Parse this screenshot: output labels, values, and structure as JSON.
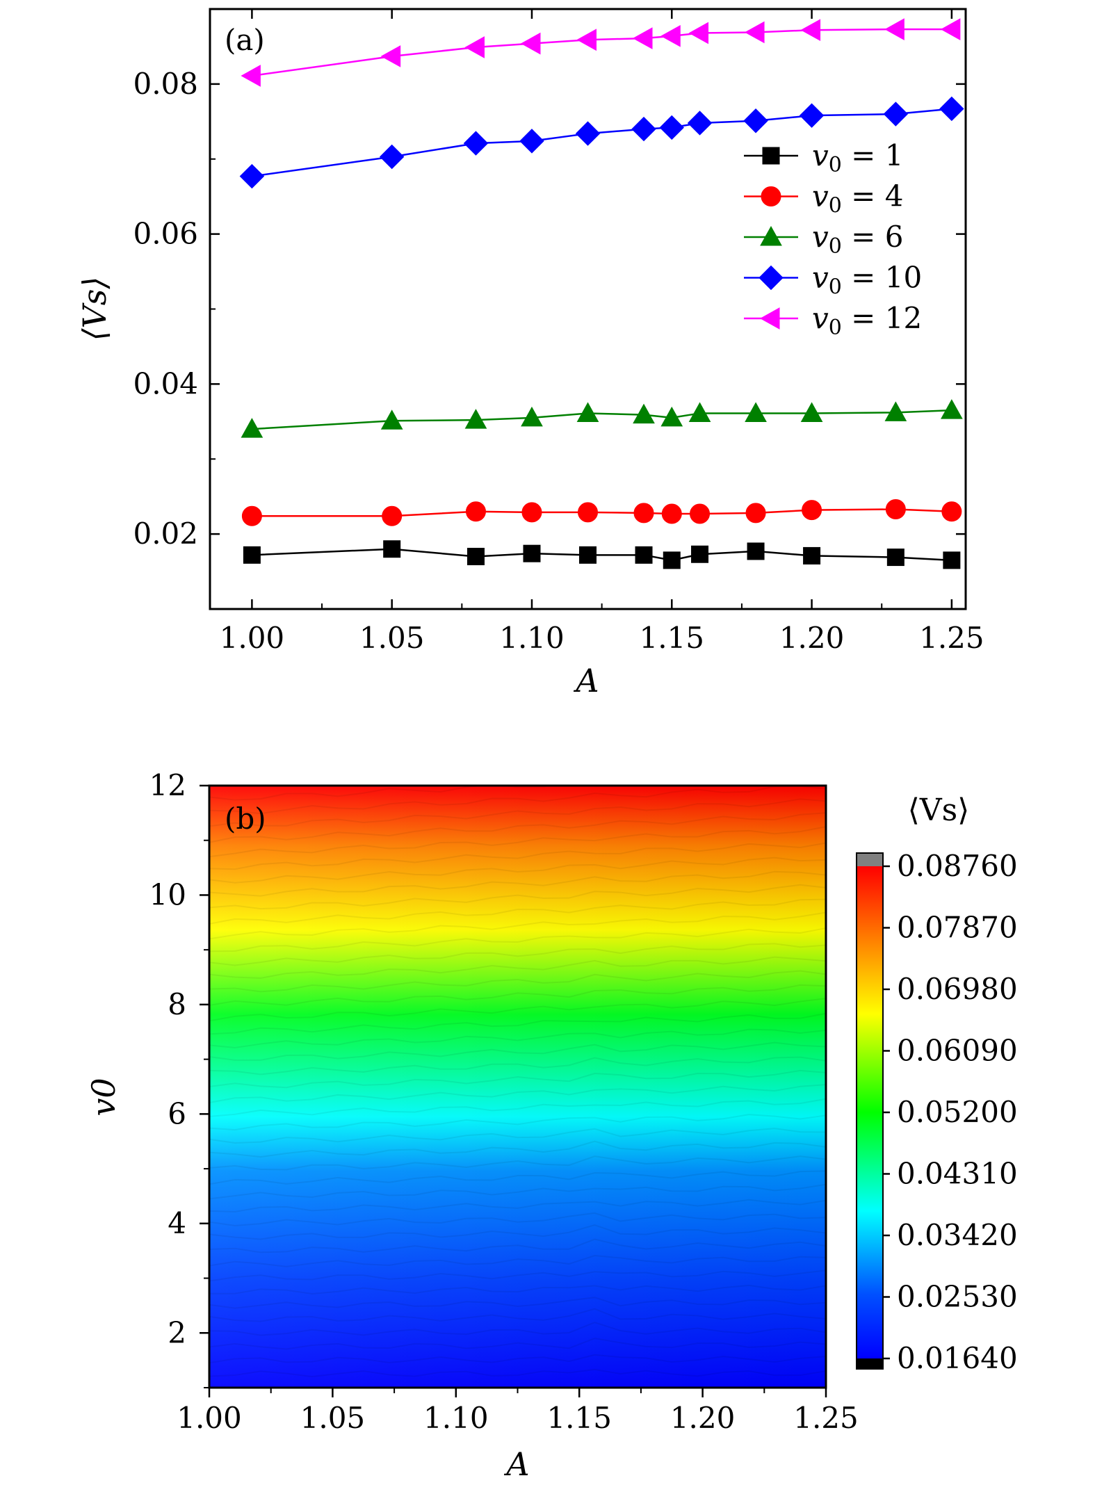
{
  "chart_data": [
    {
      "panel_label": "(a)",
      "type": "line",
      "xlabel": "A",
      "ylabel": "⟨Vs⟩",
      "xlim": [
        0.985,
        1.255
      ],
      "ylim": [
        0.01,
        0.09
      ],
      "x_ticks": [
        "1.00",
        "1.05",
        "1.10",
        "1.15",
        "1.20",
        "1.25"
      ],
      "x_tick_values": [
        1.0,
        1.05,
        1.1,
        1.15,
        1.2,
        1.25
      ],
      "y_ticks": [
        "0.02",
        "0.04",
        "0.06",
        "0.08"
      ],
      "y_tick_values": [
        0.02,
        0.04,
        0.06,
        0.08
      ],
      "x": [
        1.0,
        1.05,
        1.08,
        1.1,
        1.12,
        1.14,
        1.15,
        1.16,
        1.18,
        1.2,
        1.23,
        1.25
      ],
      "legend_position": "right",
      "series": [
        {
          "name": "v0 = 1",
          "label_lhs": "v",
          "label_sub": "0",
          "label_rhs": " = 1",
          "color": "#000000",
          "marker": "square",
          "values": [
            0.0172,
            0.018,
            0.017,
            0.0174,
            0.0172,
            0.0172,
            0.0165,
            0.0173,
            0.0177,
            0.0171,
            0.0169,
            0.0165
          ]
        },
        {
          "name": "v0 = 4",
          "label_lhs": "v",
          "label_sub": "0",
          "label_rhs": " = 4",
          "color": "#ff0000",
          "marker": "circle",
          "values": [
            0.0224,
            0.0224,
            0.023,
            0.0229,
            0.0229,
            0.0228,
            0.0227,
            0.0227,
            0.0228,
            0.0232,
            0.0233,
            0.023
          ]
        },
        {
          "name": "v0 = 6",
          "label_lhs": "v",
          "label_sub": "0",
          "label_rhs": " = 6",
          "color": "#008000",
          "marker": "triangle-up",
          "values": [
            0.034,
            0.0351,
            0.0352,
            0.0355,
            0.0361,
            0.0359,
            0.0355,
            0.0361,
            0.0361,
            0.0361,
            0.0362,
            0.0365
          ]
        },
        {
          "name": "v0 = 10",
          "label_lhs": "v",
          "label_sub": "0",
          "label_rhs": " = 10",
          "color": "#0000ff",
          "marker": "diamond",
          "values": [
            0.0677,
            0.0703,
            0.0721,
            0.0724,
            0.0734,
            0.074,
            0.0742,
            0.0748,
            0.0751,
            0.0758,
            0.076,
            0.0767
          ]
        },
        {
          "name": "v0 = 12",
          "label_lhs": "v",
          "label_sub": "0",
          "label_rhs": " = 12",
          "color": "#ff00ff",
          "marker": "triangle-left",
          "values": [
            0.0811,
            0.0837,
            0.0849,
            0.0854,
            0.0859,
            0.0861,
            0.0864,
            0.0868,
            0.0869,
            0.0872,
            0.0873,
            0.0873
          ]
        }
      ]
    },
    {
      "panel_label": "(b)",
      "type": "heatmap",
      "xlabel": "A",
      "ylabel": "v0",
      "xlim": [
        1.0,
        1.25
      ],
      "ylim": [
        1,
        12
      ],
      "x_ticks": [
        "1.00",
        "1.05",
        "1.10",
        "1.15",
        "1.20",
        "1.25"
      ],
      "x_tick_values": [
        1.0,
        1.05,
        1.1,
        1.15,
        1.2,
        1.25
      ],
      "y_ticks": [
        "2",
        "4",
        "6",
        "8",
        "10",
        "12"
      ],
      "y_tick_values": [
        2,
        4,
        6,
        8,
        10,
        12
      ],
      "colorbar": {
        "title": "⟨Vs⟩",
        "ticks": [
          "0.08760",
          "0.07870",
          "0.06980",
          "0.06090",
          "0.05200",
          "0.04310",
          "0.03420",
          "0.02530",
          "0.01640"
        ],
        "tick_values": [
          0.0876,
          0.0787,
          0.0698,
          0.0609,
          0.052,
          0.0431,
          0.0342,
          0.0253,
          0.0164
        ],
        "range": [
          0.0164,
          0.0876
        ],
        "colors": [
          "#0000ff",
          "#00ffff",
          "#00ff00",
          "#ffff00",
          "#ff8000",
          "#ff0000"
        ],
        "under_color": "#000000",
        "over_color": "#808080"
      },
      "description": "filled contour of <Vs> over A (1.00-1.25) and v0 (1-12); <Vs> rises with v0 and slightly with A"
    }
  ]
}
